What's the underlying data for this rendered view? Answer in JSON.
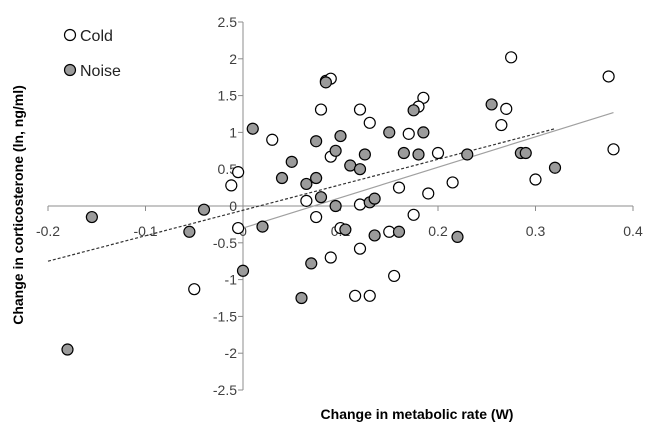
{
  "chart_data": {
    "type": "scatter",
    "xlabel": "Change in metabolic rate (W)",
    "ylabel": "Change in corticosterone (ln, ng/ml)",
    "xlim": [
      -0.2,
      0.4
    ],
    "ylim": [
      -2.5,
      2.5
    ],
    "x_ticks": [
      "-0.2",
      "-0.1",
      "0",
      "0.1",
      "0.2",
      "0.3",
      "0.4"
    ],
    "y_ticks": [
      "2.5",
      "2",
      "1.5",
      "1",
      "0.5",
      "0",
      "-0.5",
      "-1",
      "-1.5",
      "-2",
      "-2.5"
    ],
    "x_tick_values": [
      -0.2,
      -0.1,
      0,
      0.1,
      0.2,
      0.3,
      0.4
    ],
    "y_tick_values": [
      2.5,
      2,
      1.5,
      1,
      0.5,
      0,
      -0.5,
      -1,
      -1.5,
      -2,
      -2.5
    ],
    "grid": false,
    "legend_position": "top-left",
    "series": [
      {
        "name": "Cold",
        "marker": "open-circle",
        "fill": "#ffffff",
        "stroke": "#000000",
        "trendline": "solid",
        "trend_color": "#a0a0a0",
        "trend_x": [
          0.0,
          0.38
        ],
        "trend_y": [
          -0.3,
          1.27
        ],
        "points": [
          [
            -0.012,
            0.28
          ],
          [
            -0.005,
            0.46
          ],
          [
            -0.005,
            -0.3
          ],
          [
            -0.05,
            -1.13
          ],
          [
            0.03,
            0.9
          ],
          [
            0.065,
            0.07
          ],
          [
            0.075,
            -0.15
          ],
          [
            0.08,
            1.31
          ],
          [
            0.085,
            1.7
          ],
          [
            0.09,
            1.73
          ],
          [
            0.09,
            0.67
          ],
          [
            0.09,
            -0.7
          ],
          [
            0.1,
            -0.3
          ],
          [
            0.12,
            1.31
          ],
          [
            0.12,
            0.02
          ],
          [
            0.13,
            1.13
          ],
          [
            0.12,
            -0.58
          ],
          [
            0.115,
            -1.22
          ],
          [
            0.13,
            -1.22
          ],
          [
            0.15,
            -0.35
          ],
          [
            0.16,
            0.25
          ],
          [
            0.155,
            -0.95
          ],
          [
            0.17,
            0.98
          ],
          [
            0.175,
            -0.12
          ],
          [
            0.185,
            1.47
          ],
          [
            0.18,
            1.35
          ],
          [
            0.19,
            0.17
          ],
          [
            0.2,
            0.72
          ],
          [
            0.215,
            0.32
          ],
          [
            0.265,
            1.1
          ],
          [
            0.27,
            1.32
          ],
          [
            0.275,
            2.02
          ],
          [
            0.3,
            0.36
          ],
          [
            0.375,
            1.76
          ],
          [
            0.38,
            0.77
          ]
        ]
      },
      {
        "name": "Noise",
        "marker": "filled-circle",
        "fill": "#9b9b9b",
        "stroke": "#000000",
        "trendline": "dashed",
        "trend_color": "#333333",
        "trend_x": [
          -0.2,
          0.32
        ],
        "trend_y": [
          -0.75,
          1.05
        ],
        "points": [
          [
            -0.18,
            -1.95
          ],
          [
            -0.155,
            -0.15
          ],
          [
            -0.055,
            -0.35
          ],
          [
            -0.04,
            -0.05
          ],
          [
            0.0,
            -0.88
          ],
          [
            0.01,
            1.05
          ],
          [
            0.02,
            -0.28
          ],
          [
            0.04,
            0.38
          ],
          [
            0.05,
            0.6
          ],
          [
            0.065,
            0.3
          ],
          [
            0.075,
            0.88
          ],
          [
            0.075,
            0.38
          ],
          [
            0.08,
            0.12
          ],
          [
            0.07,
            -0.78
          ],
          [
            0.06,
            -1.25
          ],
          [
            0.085,
            1.68
          ],
          [
            0.095,
            0.75
          ],
          [
            0.1,
            0.95
          ],
          [
            0.095,
            0.0
          ],
          [
            0.11,
            0.55
          ],
          [
            0.105,
            -0.32
          ],
          [
            0.12,
            0.5
          ],
          [
            0.125,
            0.7
          ],
          [
            0.13,
            0.05
          ],
          [
            0.135,
            0.1
          ],
          [
            0.135,
            -0.4
          ],
          [
            0.15,
            1.0
          ],
          [
            0.16,
            -0.35
          ],
          [
            0.165,
            0.72
          ],
          [
            0.175,
            1.3
          ],
          [
            0.18,
            0.7
          ],
          [
            0.185,
            1.0
          ],
          [
            0.22,
            -0.42
          ],
          [
            0.23,
            0.7
          ],
          [
            0.255,
            1.38
          ],
          [
            0.285,
            0.72
          ],
          [
            0.29,
            0.72
          ],
          [
            0.32,
            0.52
          ]
        ]
      }
    ]
  },
  "legend": {
    "cold_label": "Cold",
    "noise_label": "Noise"
  }
}
